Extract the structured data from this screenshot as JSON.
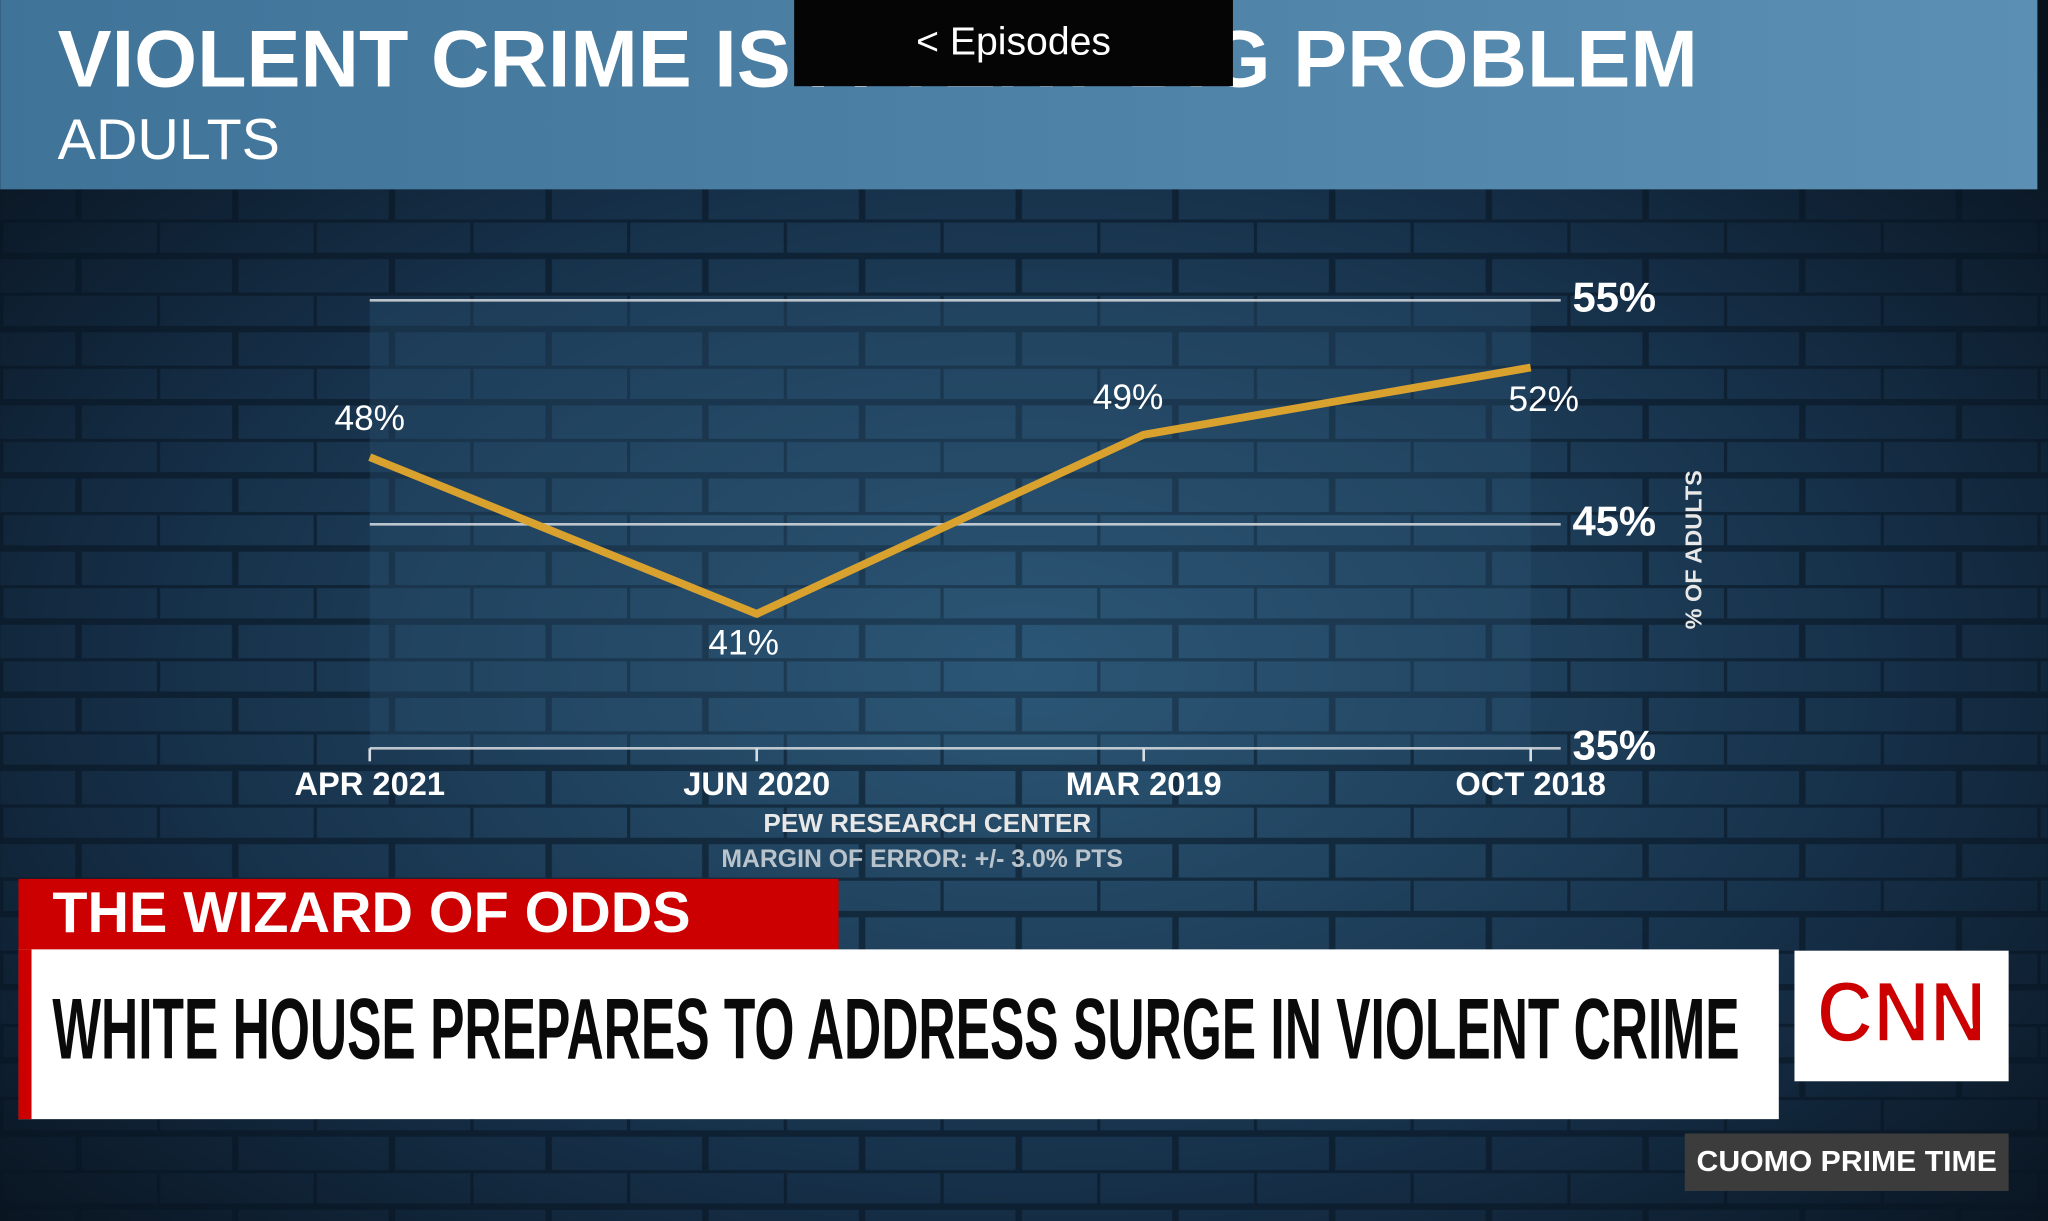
{
  "chart_data": {
    "type": "line",
    "title": "VIOLENT CRIME IS A VERY BIG PROBLEM",
    "subtitle": "ADULTS",
    "categories": [
      "APR 2021",
      "JUN 2020",
      "MAR 2019",
      "OCT 2018"
    ],
    "series": [
      {
        "name": "% OF ADULTS",
        "color": "#d9a12e",
        "values": [
          48,
          41,
          49,
          52
        ],
        "value_labels": [
          "48%",
          "41%",
          "49%",
          "52%"
        ]
      }
    ],
    "y_axis_label": "% OF ADULTS",
    "ylim": [
      35,
      55
    ],
    "yticks": [
      {
        "value": 35,
        "label": "35%"
      },
      {
        "value": 45,
        "label": "45%"
      },
      {
        "value": 55,
        "label": "55%"
      }
    ],
    "grid": true,
    "source": "PEW RESEARCH CENTER",
    "note": "MARGIN OF ERROR: +/- 3.0% PTS"
  },
  "player": {
    "episodes_button": "< Episodes"
  },
  "lower_third": {
    "segment": "THE WIZARD OF ODDS",
    "headline": "WHITE HOUSE PREPARES TO ADDRESS SURGE IN VIOLENT CRIME",
    "network": "CNN",
    "show": "CUOMO PRIME TIME"
  }
}
